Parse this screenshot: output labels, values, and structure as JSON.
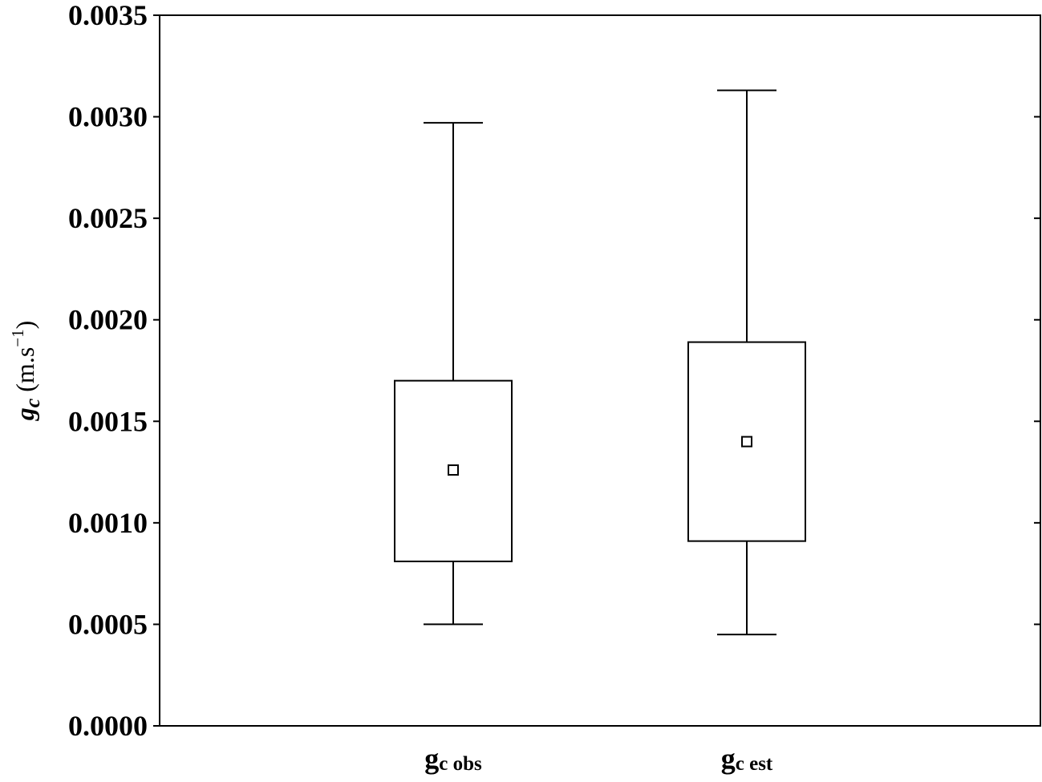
{
  "chart_data": {
    "type": "box",
    "ylabel": {
      "symbol": "g",
      "subscript": "c",
      "unit_open": " (m.s",
      "unit_sup": "−1",
      "unit_close": ")"
    },
    "ylim": [
      0,
      0.0035
    ],
    "yticks": [
      "0.0000",
      "0.0005",
      "0.0010",
      "0.0015",
      "0.0020",
      "0.0025",
      "0.0030",
      "0.0035"
    ],
    "ytick_values": [
      0,
      0.0005,
      0.001,
      0.0015,
      0.002,
      0.0025,
      0.003,
      0.0035
    ],
    "grid": false,
    "categories": [
      {
        "base": "g",
        "sub": "c obs"
      },
      {
        "base": "g",
        "sub": "c est"
      }
    ],
    "boxes": [
      {
        "whisker_low": 0.0005,
        "q1": 0.00081,
        "mean": 0.00126,
        "q3": 0.0017,
        "whisker_high": 0.00297
      },
      {
        "whisker_low": 0.00045,
        "q1": 0.00091,
        "mean": 0.0014,
        "q3": 0.00189,
        "whisker_high": 0.00313
      }
    ],
    "colors": {
      "line": "#000000",
      "fill": "#ffffff"
    }
  }
}
